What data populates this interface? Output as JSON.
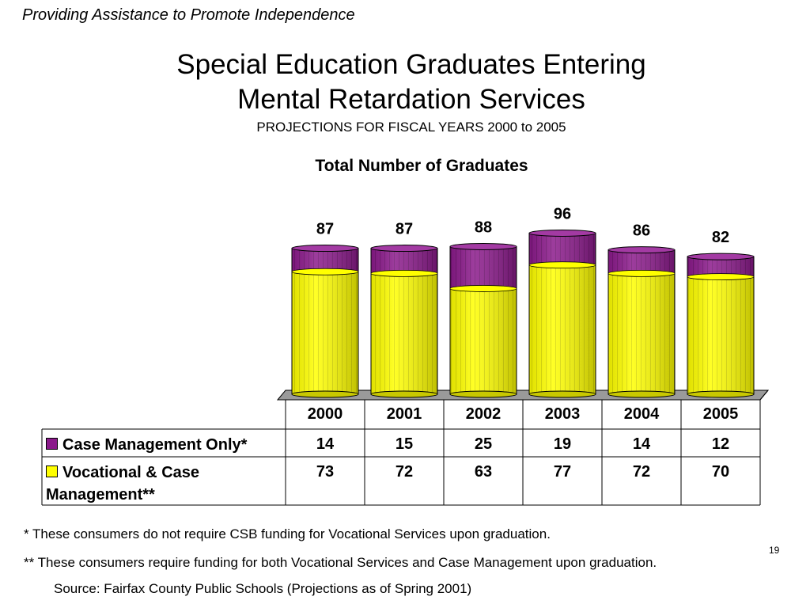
{
  "header": {
    "tagline": "Providing Assistance to Promote Independence",
    "title_line1": "Special Education Graduates Entering",
    "title_line2": "Mental Retardation Services",
    "projection": "PROJECTIONS FOR FISCAL YEARS 2000 to 2005"
  },
  "colors": {
    "case_management": "#8B1A8B",
    "vocational": "#FFFF00"
  },
  "chart_data": {
    "type": "bar",
    "stacked": true,
    "title": "Total Number of Graduates",
    "categories": [
      "2000",
      "2001",
      "2002",
      "2003",
      "2004",
      "2005"
    ],
    "series": [
      {
        "name": "Case Management Only*",
        "values": [
          14,
          15,
          25,
          19,
          14,
          12
        ]
      },
      {
        "name": "Vocational & Case Management**",
        "values": [
          73,
          72,
          63,
          77,
          72,
          70
        ]
      }
    ],
    "totals": [
      87,
      87,
      88,
      96,
      86,
      82
    ],
    "ylim": [
      0,
      100
    ],
    "grid": false,
    "legend": "data-table"
  },
  "table": {
    "row1_label": "Case Management Only*",
    "row2_label_line1": "Vocational & Case",
    "row2_label_line2": "Management**"
  },
  "footnotes": {
    "note1": "*  These consumers do not require CSB funding for Vocational Services upon graduation.",
    "note2": "** These consumers require funding for both Vocational Services and Case Management upon graduation.",
    "source": "Source: Fairfax County Public Schools (Projections as of Spring 2001)"
  },
  "page_number": "19"
}
